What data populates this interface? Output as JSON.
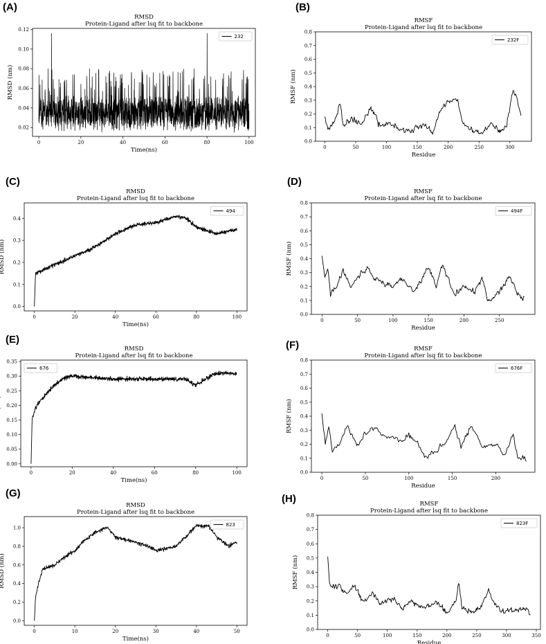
{
  "panels": [
    {
      "letter": "(A)",
      "chart": {
        "type": "line",
        "title": "RMSD",
        "subtitle": "Protein-Ligand after lsq fit to backbone",
        "xlabel": "Time(ns)",
        "ylabel": "RMSD (nm)",
        "legend": "232",
        "legend_position": "top-right",
        "xlim": [
          -3,
          103
        ],
        "ylim": [
          0.011,
          0.121
        ],
        "xticks": [
          "0",
          "20",
          "40",
          "60",
          "80",
          "100"
        ],
        "yticks": [
          "0.02",
          "0.04",
          "0.06",
          "0.08",
          "0.10",
          "0.12"
        ],
        "x_start": 0,
        "x_end": 100,
        "y_stats": {
          "mean": 0.033,
          "min": 0.015,
          "typical_max": 0.08,
          "peak": 0.116
        },
        "density": "dense",
        "points": 1400,
        "seed": 11
      }
    },
    {
      "letter": "(B)",
      "chart": {
        "type": "line",
        "title": "RMSF",
        "subtitle": "Protein-Ligand after lsq fit to backbone",
        "xlabel": "Residue",
        "ylabel": "RMSF (nm)",
        "legend": "232F",
        "legend_position": "top-right",
        "xlim": [
          -15,
          335
        ],
        "ylim": [
          0,
          0.8
        ],
        "xticks": [
          "0",
          "50",
          "100",
          "150",
          "200",
          "250",
          "300"
        ],
        "yticks": [
          "0.0",
          "0.1",
          "0.2",
          "0.3",
          "0.4",
          "0.5",
          "0.6",
          "0.7",
          "0.8"
        ],
        "profile": [
          [
            0,
            0.18
          ],
          [
            5,
            0.09
          ],
          [
            15,
            0.14
          ],
          [
            25,
            0.28
          ],
          [
            30,
            0.12
          ],
          [
            45,
            0.17
          ],
          [
            60,
            0.12
          ],
          [
            75,
            0.25
          ],
          [
            90,
            0.1
          ],
          [
            105,
            0.14
          ],
          [
            120,
            0.09
          ],
          [
            140,
            0.08
          ],
          [
            160,
            0.12
          ],
          [
            175,
            0.06
          ],
          [
            190,
            0.25
          ],
          [
            200,
            0.29
          ],
          [
            215,
            0.3
          ],
          [
            225,
            0.12
          ],
          [
            240,
            0.08
          ],
          [
            255,
            0.06
          ],
          [
            270,
            0.12
          ],
          [
            285,
            0.07
          ],
          [
            295,
            0.12
          ],
          [
            305,
            0.38
          ],
          [
            312,
            0.3
          ],
          [
            318,
            0.18
          ]
        ],
        "points": 320,
        "seed": 21
      }
    },
    {
      "letter": "(C)",
      "chart": {
        "type": "line",
        "title": "RMSD",
        "subtitle": "Protein-Ligand after lsq fit to backbone",
        "xlabel": "Time(ns)",
        "ylabel": "RMSD (nm)",
        "legend": "494",
        "legend_position": "top-right",
        "xlim": [
          -5,
          105
        ],
        "ylim": [
          -0.02,
          0.47
        ],
        "xticks": [
          "0",
          "20",
          "40",
          "60",
          "80",
          "100"
        ],
        "yticks": [
          "0.0",
          "0.1",
          "0.2",
          "0.3",
          "0.4"
        ],
        "profile": [
          [
            0,
            0.0
          ],
          [
            0.6,
            0.15
          ],
          [
            3,
            0.16
          ],
          [
            10,
            0.19
          ],
          [
            20,
            0.23
          ],
          [
            30,
            0.27
          ],
          [
            40,
            0.33
          ],
          [
            50,
            0.37
          ],
          [
            60,
            0.38
          ],
          [
            70,
            0.41
          ],
          [
            75,
            0.4
          ],
          [
            80,
            0.36
          ],
          [
            90,
            0.33
          ],
          [
            100,
            0.35
          ]
        ],
        "noise": 0.015,
        "points": 1000,
        "seed": 31
      }
    },
    {
      "letter": "(D)",
      "chart": {
        "type": "line",
        "title": "RMSF",
        "subtitle": "Protein-Ligand after lsq fit to backbone",
        "xlabel": "Residue",
        "ylabel": "RMSF (nm)",
        "legend": "494F",
        "legend_position": "top-right",
        "xlim": [
          -15,
          300
        ],
        "ylim": [
          0,
          0.8
        ],
        "xticks": [
          "0",
          "50",
          "100",
          "150",
          "200",
          "250"
        ],
        "yticks": [
          "0.0",
          "0.1",
          "0.2",
          "0.3",
          "0.4",
          "0.5",
          "0.6",
          "0.7",
          "0.8"
        ],
        "profile": [
          [
            0,
            0.42
          ],
          [
            4,
            0.25
          ],
          [
            8,
            0.33
          ],
          [
            12,
            0.14
          ],
          [
            20,
            0.2
          ],
          [
            30,
            0.32
          ],
          [
            40,
            0.2
          ],
          [
            55,
            0.3
          ],
          [
            65,
            0.33
          ],
          [
            75,
            0.25
          ],
          [
            90,
            0.22
          ],
          [
            100,
            0.2
          ],
          [
            110,
            0.26
          ],
          [
            130,
            0.16
          ],
          [
            150,
            0.34
          ],
          [
            160,
            0.2
          ],
          [
            170,
            0.35
          ],
          [
            185,
            0.15
          ],
          [
            200,
            0.2
          ],
          [
            215,
            0.15
          ],
          [
            225,
            0.27
          ],
          [
            235,
            0.1
          ],
          [
            250,
            0.16
          ],
          [
            265,
            0.27
          ],
          [
            275,
            0.15
          ],
          [
            285,
            0.1
          ]
        ],
        "points": 288,
        "seed": 41
      }
    },
    {
      "letter": "(E)",
      "chart": {
        "type": "line",
        "title": "RMSD",
        "subtitle": "Protein-Ligand after lsq fit to backbone",
        "xlabel": "Time(ns)",
        "ylabel": "RMSD (nm)",
        "legend": "676",
        "legend_position": "top-left",
        "xlim": [
          -5,
          105
        ],
        "ylim": [
          -0.01,
          0.355
        ],
        "xticks": [
          "0",
          "20",
          "40",
          "60",
          "80",
          "100"
        ],
        "yticks": [
          "0.00",
          "0.05",
          "0.10",
          "0.15",
          "0.20",
          "0.25",
          "0.30",
          "0.35"
        ],
        "profile": [
          [
            0,
            0.0
          ],
          [
            0.5,
            0.15
          ],
          [
            2,
            0.19
          ],
          [
            5,
            0.22
          ],
          [
            10,
            0.26
          ],
          [
            15,
            0.29
          ],
          [
            20,
            0.3
          ],
          [
            40,
            0.29
          ],
          [
            60,
            0.29
          ],
          [
            75,
            0.29
          ],
          [
            80,
            0.27
          ],
          [
            85,
            0.29
          ],
          [
            90,
            0.31
          ],
          [
            100,
            0.31
          ]
        ],
        "noise": 0.012,
        "points": 1000,
        "seed": 51
      }
    },
    {
      "letter": "(F)",
      "chart": {
        "type": "line",
        "title": "RMSF",
        "subtitle": "Protein-Ligand after lsq fit to backbone",
        "xlabel": "Residue",
        "ylabel": "RMSF (nm)",
        "legend": "676F",
        "legend_position": "top-right",
        "xlim": [
          -12,
          245
        ],
        "ylim": [
          0,
          0.8
        ],
        "xticks": [
          "0",
          "50",
          "100",
          "150",
          "200"
        ],
        "yticks": [
          "0.0",
          "0.1",
          "0.2",
          "0.3",
          "0.4",
          "0.5",
          "0.6",
          "0.7",
          "0.8"
        ],
        "profile": [
          [
            0,
            0.42
          ],
          [
            4,
            0.2
          ],
          [
            8,
            0.33
          ],
          [
            12,
            0.14
          ],
          [
            20,
            0.2
          ],
          [
            30,
            0.33
          ],
          [
            40,
            0.18
          ],
          [
            50,
            0.27
          ],
          [
            60,
            0.32
          ],
          [
            75,
            0.25
          ],
          [
            90,
            0.22
          ],
          [
            100,
            0.27
          ],
          [
            110,
            0.2
          ],
          [
            120,
            0.1
          ],
          [
            140,
            0.2
          ],
          [
            153,
            0.33
          ],
          [
            160,
            0.18
          ],
          [
            172,
            0.33
          ],
          [
            185,
            0.18
          ],
          [
            200,
            0.2
          ],
          [
            210,
            0.12
          ],
          [
            220,
            0.27
          ],
          [
            225,
            0.1
          ],
          [
            230,
            0.12
          ],
          [
            235,
            0.09
          ]
        ],
        "points": 236,
        "seed": 61
      }
    },
    {
      "letter": "(G)",
      "chart": {
        "type": "line",
        "title": "RMSD",
        "subtitle": "Protein-Ligand after lsq fit to backbone",
        "xlabel": "Time(ns)",
        "ylabel": "RMSD (nm)",
        "legend": "823",
        "legend_position": "top-right",
        "xlim": [
          -2.5,
          52.5
        ],
        "ylim": [
          -0.05,
          1.12
        ],
        "xticks": [
          "0",
          "10",
          "20",
          "30",
          "40",
          "50"
        ],
        "yticks": [
          "0.0",
          "0.2",
          "0.4",
          "0.6",
          "0.8",
          "1.0"
        ],
        "profile": [
          [
            0,
            0.0
          ],
          [
            0.3,
            0.25
          ],
          [
            1,
            0.4
          ],
          [
            2,
            0.55
          ],
          [
            5,
            0.6
          ],
          [
            8,
            0.7
          ],
          [
            10,
            0.75
          ],
          [
            12,
            0.85
          ],
          [
            15,
            0.95
          ],
          [
            18,
            1.0
          ],
          [
            20,
            0.9
          ],
          [
            25,
            0.85
          ],
          [
            28,
            0.8
          ],
          [
            30,
            0.75
          ],
          [
            35,
            0.8
          ],
          [
            40,
            1.02
          ],
          [
            43,
            1.02
          ],
          [
            45,
            0.9
          ],
          [
            48,
            0.8
          ],
          [
            50,
            0.85
          ]
        ],
        "noise": 0.035,
        "points": 700,
        "seed": 71
      }
    },
    {
      "letter": "(H)",
      "chart": {
        "type": "line",
        "title": "RMSF",
        "subtitle": "Protein-Ligand after lsq fit to backbone",
        "xlabel": "Residue",
        "ylabel": "RMSF (nm)",
        "legend": "823F",
        "legend_position": "top-right",
        "xlim": [
          -17,
          357
        ],
        "ylim": [
          0,
          0.8
        ],
        "xticks": [
          "0",
          "50",
          "100",
          "150",
          "200",
          "250",
          "300",
          "350"
        ],
        "yticks": [
          "0.0",
          "0.1",
          "0.2",
          "0.3",
          "0.4",
          "0.5",
          "0.6",
          "0.7",
          "0.8"
        ],
        "profile": [
          [
            0,
            0.51
          ],
          [
            3,
            0.32
          ],
          [
            10,
            0.3
          ],
          [
            20,
            0.3
          ],
          [
            30,
            0.25
          ],
          [
            45,
            0.3
          ],
          [
            60,
            0.2
          ],
          [
            75,
            0.25
          ],
          [
            90,
            0.18
          ],
          [
            110,
            0.22
          ],
          [
            125,
            0.15
          ],
          [
            140,
            0.2
          ],
          [
            160,
            0.15
          ],
          [
            180,
            0.18
          ],
          [
            200,
            0.12
          ],
          [
            215,
            0.2
          ],
          [
            220,
            0.35
          ],
          [
            225,
            0.15
          ],
          [
            240,
            0.12
          ],
          [
            255,
            0.15
          ],
          [
            270,
            0.27
          ],
          [
            285,
            0.15
          ],
          [
            300,
            0.12
          ],
          [
            320,
            0.14
          ],
          [
            335,
            0.15
          ],
          [
            340,
            0.11
          ]
        ],
        "points": 342,
        "seed": 81
      }
    }
  ]
}
